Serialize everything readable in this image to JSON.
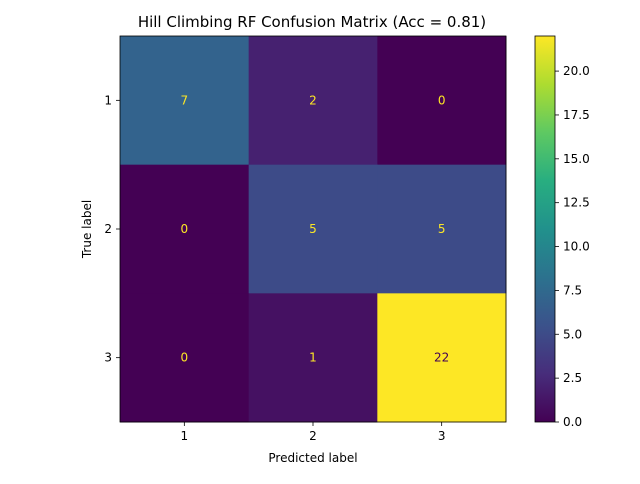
{
  "chart_data": {
    "type": "heatmap",
    "title": "Hill Climbing RF Confusion Matrix (Acc = 0.81)",
    "xlabel": "Predicted label",
    "ylabel": "True label",
    "x_categories": [
      "1",
      "2",
      "3"
    ],
    "y_categories": [
      "1",
      "2",
      "3"
    ],
    "matrix": [
      [
        7,
        2,
        0
      ],
      [
        0,
        5,
        5
      ],
      [
        0,
        1,
        22
      ]
    ],
    "colormap": "viridis",
    "colorbar": {
      "range": [
        0,
        22
      ],
      "ticks": [
        "0.0",
        "2.5",
        "5.0",
        "7.5",
        "10.0",
        "12.5",
        "15.0",
        "17.5",
        "20.0"
      ]
    },
    "cell_text_colors": {
      "on_dark": "#fde725",
      "on_light": "#440154"
    },
    "grid": false
  }
}
